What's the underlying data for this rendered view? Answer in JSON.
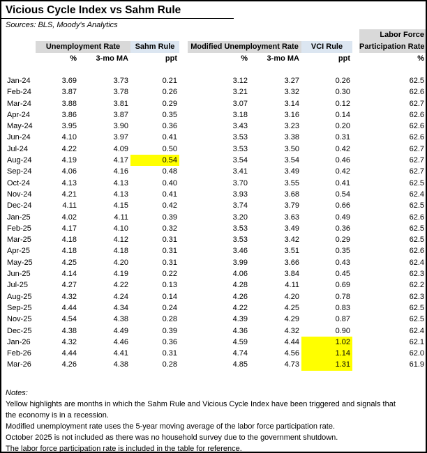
{
  "page": {
    "title": "Vicious Cycle Index vs Sahm Rule",
    "sources": "Sources: BLS, Moody's Analytics"
  },
  "colors": {
    "header_gray": "#D9D9D9",
    "header_blue": "#DCE6F1",
    "highlight_yellow": "#FFFF00"
  },
  "table": {
    "group_headers": {
      "unemployment": "Unemployment Rate",
      "sahm": "Sahm Rule",
      "modified": "Modified Unemployment Rate",
      "vci": "VCI Rule",
      "lfpr_line1": "Labor Force",
      "lfpr_line2": "Participation Rate"
    },
    "subheaders": [
      "%",
      "3-mo MA",
      "ppt",
      "%",
      "3-mo MA",
      "ppt",
      "%"
    ],
    "rows": [
      {
        "month": "Jan-24",
        "u_pct": "3.69",
        "u_ma": "3.73",
        "sahm": "0.21",
        "m_pct": "3.12",
        "m_ma": "3.27",
        "vci": "0.26",
        "lfpr": "62.5",
        "hl": ""
      },
      {
        "month": "Feb-24",
        "u_pct": "3.87",
        "u_ma": "3.78",
        "sahm": "0.26",
        "m_pct": "3.21",
        "m_ma": "3.32",
        "vci": "0.30",
        "lfpr": "62.6",
        "hl": ""
      },
      {
        "month": "Mar-24",
        "u_pct": "3.88",
        "u_ma": "3.81",
        "sahm": "0.29",
        "m_pct": "3.07",
        "m_ma": "3.14",
        "vci": "0.12",
        "lfpr": "62.7",
        "hl": ""
      },
      {
        "month": "Apr-24",
        "u_pct": "3.86",
        "u_ma": "3.87",
        "sahm": "0.35",
        "m_pct": "3.18",
        "m_ma": "3.16",
        "vci": "0.14",
        "lfpr": "62.6",
        "hl": ""
      },
      {
        "month": "May-24",
        "u_pct": "3.95",
        "u_ma": "3.90",
        "sahm": "0.36",
        "m_pct": "3.43",
        "m_ma": "3.23",
        "vci": "0.20",
        "lfpr": "62.6",
        "hl": ""
      },
      {
        "month": "Jun-24",
        "u_pct": "4.10",
        "u_ma": "3.97",
        "sahm": "0.41",
        "m_pct": "3.53",
        "m_ma": "3.38",
        "vci": "0.31",
        "lfpr": "62.6",
        "hl": ""
      },
      {
        "month": "Jul-24",
        "u_pct": "4.22",
        "u_ma": "4.09",
        "sahm": "0.50",
        "m_pct": "3.53",
        "m_ma": "3.50",
        "vci": "0.42",
        "lfpr": "62.7",
        "hl": ""
      },
      {
        "month": "Aug-24",
        "u_pct": "4.19",
        "u_ma": "4.17",
        "sahm": "0.54",
        "m_pct": "3.54",
        "m_ma": "3.54",
        "vci": "0.46",
        "lfpr": "62.7",
        "hl": "sahm"
      },
      {
        "month": "Sep-24",
        "u_pct": "4.06",
        "u_ma": "4.16",
        "sahm": "0.48",
        "m_pct": "3.41",
        "m_ma": "3.49",
        "vci": "0.42",
        "lfpr": "62.7",
        "hl": ""
      },
      {
        "month": "Oct-24",
        "u_pct": "4.13",
        "u_ma": "4.13",
        "sahm": "0.40",
        "m_pct": "3.70",
        "m_ma": "3.55",
        "vci": "0.41",
        "lfpr": "62.5",
        "hl": ""
      },
      {
        "month": "Nov-24",
        "u_pct": "4.21",
        "u_ma": "4.13",
        "sahm": "0.41",
        "m_pct": "3.93",
        "m_ma": "3.68",
        "vci": "0.54",
        "lfpr": "62.4",
        "hl": ""
      },
      {
        "month": "Dec-24",
        "u_pct": "4.11",
        "u_ma": "4.15",
        "sahm": "0.42",
        "m_pct": "3.74",
        "m_ma": "3.79",
        "vci": "0.66",
        "lfpr": "62.5",
        "hl": ""
      },
      {
        "month": "Jan-25",
        "u_pct": "4.02",
        "u_ma": "4.11",
        "sahm": "0.39",
        "m_pct": "3.20",
        "m_ma": "3.63",
        "vci": "0.49",
        "lfpr": "62.6",
        "hl": ""
      },
      {
        "month": "Feb-25",
        "u_pct": "4.17",
        "u_ma": "4.10",
        "sahm": "0.32",
        "m_pct": "3.53",
        "m_ma": "3.49",
        "vci": "0.36",
        "lfpr": "62.5",
        "hl": ""
      },
      {
        "month": "Mar-25",
        "u_pct": "4.18",
        "u_ma": "4.12",
        "sahm": "0.31",
        "m_pct": "3.53",
        "m_ma": "3.42",
        "vci": "0.29",
        "lfpr": "62.5",
        "hl": ""
      },
      {
        "month": "Apr-25",
        "u_pct": "4.18",
        "u_ma": "4.18",
        "sahm": "0.31",
        "m_pct": "3.46",
        "m_ma": "3.51",
        "vci": "0.35",
        "lfpr": "62.6",
        "hl": ""
      },
      {
        "month": "May-25",
        "u_pct": "4.25",
        "u_ma": "4.20",
        "sahm": "0.31",
        "m_pct": "3.99",
        "m_ma": "3.66",
        "vci": "0.43",
        "lfpr": "62.4",
        "hl": ""
      },
      {
        "month": "Jun-25",
        "u_pct": "4.14",
        "u_ma": "4.19",
        "sahm": "0.22",
        "m_pct": "4.06",
        "m_ma": "3.84",
        "vci": "0.45",
        "lfpr": "62.3",
        "hl": ""
      },
      {
        "month": "Jul-25",
        "u_pct": "4.27",
        "u_ma": "4.22",
        "sahm": "0.13",
        "m_pct": "4.28",
        "m_ma": "4.11",
        "vci": "0.69",
        "lfpr": "62.2",
        "hl": ""
      },
      {
        "month": "Aug-25",
        "u_pct": "4.32",
        "u_ma": "4.24",
        "sahm": "0.14",
        "m_pct": "4.26",
        "m_ma": "4.20",
        "vci": "0.78",
        "lfpr": "62.3",
        "hl": ""
      },
      {
        "month": "Sep-25",
        "u_pct": "4.44",
        "u_ma": "4.34",
        "sahm": "0.24",
        "m_pct": "4.22",
        "m_ma": "4.25",
        "vci": "0.83",
        "lfpr": "62.5",
        "hl": ""
      },
      {
        "month": "Nov-25",
        "u_pct": "4.54",
        "u_ma": "4.38",
        "sahm": "0.28",
        "m_pct": "4.39",
        "m_ma": "4.29",
        "vci": "0.87",
        "lfpr": "62.5",
        "hl": ""
      },
      {
        "month": "Dec-25",
        "u_pct": "4.38",
        "u_ma": "4.49",
        "sahm": "0.39",
        "m_pct": "4.36",
        "m_ma": "4.32",
        "vci": "0.90",
        "lfpr": "62.4",
        "hl": ""
      },
      {
        "month": "Jan-26",
        "u_pct": "4.32",
        "u_ma": "4.46",
        "sahm": "0.36",
        "m_pct": "4.59",
        "m_ma": "4.44",
        "vci": "1.02",
        "lfpr": "62.1",
        "hl": "vci"
      },
      {
        "month": "Feb-26",
        "u_pct": "4.44",
        "u_ma": "4.41",
        "sahm": "0.31",
        "m_pct": "4.74",
        "m_ma": "4.56",
        "vci": "1.14",
        "lfpr": "62.0",
        "hl": "vci"
      },
      {
        "month": "Mar-26",
        "u_pct": "4.26",
        "u_ma": "4.38",
        "sahm": "0.28",
        "m_pct": "4.85",
        "m_ma": "4.73",
        "vci": "1.31",
        "lfpr": "61.9",
        "hl": "vci"
      }
    ]
  },
  "notes": {
    "label": "Notes:",
    "lines": [
      "Yellow highlights are months in which the Sahm Rule and Vicious Cycle Index have been triggered and signals that",
      "the economy is in a recession.",
      "Modified unemployment rate uses the 5-year moving average of the labor force participation rate.",
      "October 2025 is not included as there was no household survey due to the government shutdown.",
      "The labor force participation rate is included in the table for reference."
    ]
  }
}
